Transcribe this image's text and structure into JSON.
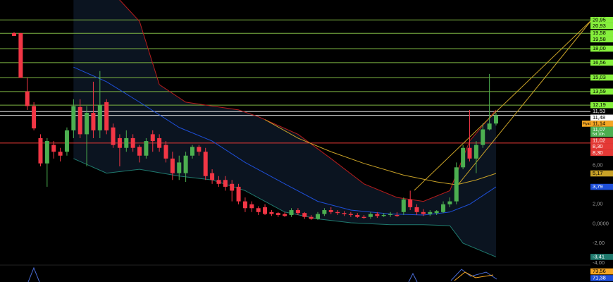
{
  "chart_data": {
    "type": "candlestick",
    "ylim": [
      -4.25,
      23
    ],
    "yticks": [
      {
        "value": 6,
        "label": "6,00"
      },
      {
        "value": 2,
        "label": "2,00"
      },
      {
        "value": 0,
        "label": "0,0000"
      },
      {
        "value": -2,
        "label": "-2,00"
      },
      {
        "value": -4,
        "label": "-4,00"
      }
    ],
    "up_color": "#4caf50",
    "down_color": "#f23645",
    "open": [
      19.6,
      19.6,
      13.6,
      12.1,
      8.8,
      6.2,
      8.1,
      7.4,
      7.4,
      9.6,
      12.0,
      9.2,
      11.4,
      9.6,
      12.5,
      9.9,
      8.8,
      7.8,
      8.8,
      7.9,
      7.0,
      9.2,
      8.8,
      8.1,
      6.7,
      5.2,
      5.2,
      7.0,
      7.9,
      7.4,
      5.2,
      4.5,
      4.5,
      4.1,
      3.8,
      2.3,
      2.0,
      1.6,
      1.7,
      1.2,
      1.1,
      1.0,
      0.9,
      1.4,
      1.1,
      0.7,
      0.5,
      1.0,
      1.4,
      1.2,
      1.1,
      1.0,
      0.9,
      0.7,
      0.7,
      1.0,
      0.8,
      0.9,
      0.9,
      1.2,
      2.5,
      1.7,
      1.2,
      1.0,
      1.1,
      1.2,
      2.0,
      2.3,
      5.8,
      7.8,
      6.7,
      8.1,
      9.7,
      10.3
    ],
    "high": [
      19.7,
      19.6,
      15.0,
      12.5,
      9.2,
      8.8,
      8.5,
      7.8,
      9.9,
      12.8,
      12.8,
      12.1,
      14.6,
      15.7,
      12.8,
      10.3,
      9.2,
      9.6,
      9.2,
      8.1,
      8.8,
      9.6,
      9.2,
      8.5,
      7.4,
      7.0,
      7.4,
      8.1,
      8.1,
      7.8,
      5.6,
      4.9,
      4.9,
      4.5,
      4.1,
      2.7,
      2.3,
      1.8,
      2.0,
      1.4,
      1.2,
      1.2,
      1.6,
      1.6,
      1.2,
      0.9,
      1.2,
      1.6,
      1.7,
      1.4,
      1.3,
      1.2,
      1.1,
      0.9,
      1.2,
      1.2,
      1.1,
      1.2,
      1.2,
      2.7,
      3.4,
      2.0,
      1.5,
      1.4,
      1.4,
      2.3,
      2.7,
      6.3,
      8.1,
      11.7,
      8.5,
      10.3,
      15.4,
      11.4
    ],
    "low": [
      19.3,
      15.0,
      11.7,
      9.6,
      5.9,
      3.8,
      6.7,
      6.4,
      7.0,
      8.8,
      8.8,
      5.9,
      8.8,
      8.8,
      9.2,
      7.8,
      5.9,
      7.4,
      7.4,
      6.3,
      6.7,
      7.4,
      7.4,
      6.3,
      4.5,
      4.5,
      4.3,
      6.7,
      7.0,
      4.5,
      4.1,
      3.8,
      3.4,
      2.3,
      2.0,
      1.2,
      1.2,
      0.9,
      0.9,
      0.8,
      0.7,
      0.7,
      0.7,
      0.9,
      0.5,
      0.4,
      0.4,
      0.8,
      1.0,
      0.9,
      0.8,
      0.7,
      0.6,
      0.5,
      0.5,
      0.6,
      0.7,
      0.7,
      0.7,
      0.9,
      1.4,
      0.9,
      0.8,
      0.8,
      0.9,
      1.1,
      1.7,
      2.0,
      5.6,
      6.4,
      5.2,
      7.8,
      9.6,
      10.1
    ],
    "close": [
      19.3,
      15.0,
      12.1,
      9.8,
      6.2,
      8.5,
      7.4,
      7.0,
      9.6,
      12.1,
      9.2,
      11.4,
      9.6,
      12.2,
      9.6,
      8.1,
      7.8,
      8.8,
      7.8,
      7.0,
      8.5,
      8.5,
      7.8,
      6.7,
      5.2,
      6.3,
      7.0,
      7.9,
      7.4,
      4.9,
      4.5,
      4.1,
      3.8,
      3.4,
      2.3,
      1.6,
      1.6,
      1.2,
      1.0,
      1.0,
      0.9,
      0.8,
      1.4,
      1.1,
      0.7,
      0.5,
      1.0,
      1.4,
      1.2,
      1.1,
      1.0,
      0.9,
      0.7,
      0.6,
      1.0,
      0.8,
      0.9,
      1.0,
      0.8,
      2.5,
      1.7,
      1.2,
      1.0,
      1.2,
      1.3,
      2.0,
      2.3,
      5.8,
      7.8,
      6.7,
      8.1,
      9.7,
      10.3,
      11.14
    ],
    "overlays": [
      {
        "color": "#b71c1c",
        "x": [
          9,
          16,
          19,
          22,
          26,
          30,
          34,
          37,
          43,
          48,
          53,
          58,
          62,
          66,
          69,
          73
        ],
        "values": [
          25,
          23.0,
          20.8,
          14.3,
          12.5,
          12.1,
          11.7,
          11.0,
          9.2,
          6.7,
          4.1,
          2.7,
          2.3,
          3.4,
          8.5,
          11.7
        ]
      },
      {
        "color": "#1e4fd8",
        "x": [
          9,
          14,
          19,
          25,
          30,
          35,
          41,
          46,
          51,
          57,
          62,
          66,
          69,
          73
        ],
        "values": [
          16.1,
          14.6,
          12.5,
          9.9,
          8.5,
          6.3,
          4.1,
          2.3,
          1.4,
          1.0,
          0.9,
          1.2,
          2.0,
          3.79
        ]
      },
      {
        "color": "#1f7a6e",
        "x": [
          9,
          14,
          19,
          25,
          30,
          35,
          41,
          46,
          51,
          57,
          62,
          66,
          68,
          73
        ],
        "values": [
          6.7,
          5.2,
          5.6,
          4.9,
          4.5,
          3.4,
          1.2,
          0.5,
          0.1,
          -0.1,
          -0.1,
          -0.2,
          -2.0,
          -3.41
        ]
      },
      {
        "color": "#c9a227",
        "x": [
          38,
          43,
          48,
          53,
          59,
          64,
          67,
          70,
          73
        ],
        "values": [
          10.7,
          8.8,
          7.4,
          6.2,
          5.0,
          4.3,
          4.0,
          4.5,
          5.17
        ]
      }
    ],
    "levels": [
      {
        "value": 20.95,
        "color": "#7cb342"
      },
      {
        "value": 19.58,
        "color": "#7cb342"
      },
      {
        "value": 18.0,
        "color": "#7cb342"
      },
      {
        "value": 16.56,
        "color": "#7cb342"
      },
      {
        "value": 15.03,
        "color": "#7cb342"
      },
      {
        "value": 13.59,
        "color": "#7cb342"
      },
      {
        "value": 12.19,
        "color": "#7cb342"
      },
      {
        "value": 11.53,
        "color": "#e0e0e0"
      },
      {
        "value": 11.14,
        "color": "#e0e0e0"
      },
      {
        "value": 8.3,
        "color": "#e53935"
      }
    ],
    "price_labels": [
      {
        "value": 20.95,
        "label": "20,95",
        "bg": "#86f03c",
        "fg": "#000"
      },
      {
        "value": 20.93,
        "label": "20,93",
        "bg": "#86f03c",
        "fg": "#000"
      },
      {
        "value": 19.58,
        "label": "19,58",
        "bg": "#86f03c",
        "fg": "#000"
      },
      {
        "value": 19.58,
        "label": "19,58",
        "bg": "#86f03c",
        "fg": "#000"
      },
      {
        "value": 18.0,
        "label": "18,00",
        "bg": "#86f03c",
        "fg": "#000"
      },
      {
        "value": 16.56,
        "label": "16,56",
        "bg": "#86f03c",
        "fg": "#000"
      },
      {
        "value": 15.03,
        "label": "15,03",
        "bg": "#86f03c",
        "fg": "#000"
      },
      {
        "value": 13.59,
        "label": "13,59",
        "bg": "#86f03c",
        "fg": "#000"
      },
      {
        "value": 12.19,
        "label": "12,19",
        "bg": "#86f03c",
        "fg": "#000"
      },
      {
        "value": 11.53,
        "label": "11,53",
        "bg": "#000",
        "fg": "#fff"
      },
      {
        "value": 11.48,
        "label": "11,48",
        "bg": "#fff",
        "fg": "#000"
      },
      {
        "value": 11.14,
        "label": "11,14",
        "bg": "#f5a623",
        "fg": "#000"
      },
      {
        "value": 11.07,
        "label": "11,07",
        "bg": "#4caf50",
        "fg": "#fff"
      },
      {
        "value": 11.02,
        "label": "11,02",
        "bg": "#e53935",
        "fg": "#fff"
      },
      {
        "value": 8.3,
        "label": "8,30",
        "bg": "#e53935",
        "fg": "#fff"
      },
      {
        "value": 8.3,
        "label": "8,30",
        "bg": "#e53935",
        "fg": "#fff"
      },
      {
        "value": 5.17,
        "label": "5,17",
        "bg": "#c9a227",
        "fg": "#000"
      },
      {
        "value": 3.79,
        "label": "3,79",
        "bg": "#1e4fd8",
        "fg": "#fff"
      },
      {
        "value": -3.41,
        "label": "-3,41",
        "bg": "#1f7a6e",
        "fg": "#fff"
      }
    ],
    "price_badge": "Fiyat",
    "countdown": "5d 10h",
    "indicator_labels": [
      {
        "label": "73,56",
        "bg": "#f5a623",
        "fg": "#000"
      },
      {
        "label": "71,38",
        "bg": "#1e4fd8",
        "fg": "#fff"
      }
    ]
  }
}
